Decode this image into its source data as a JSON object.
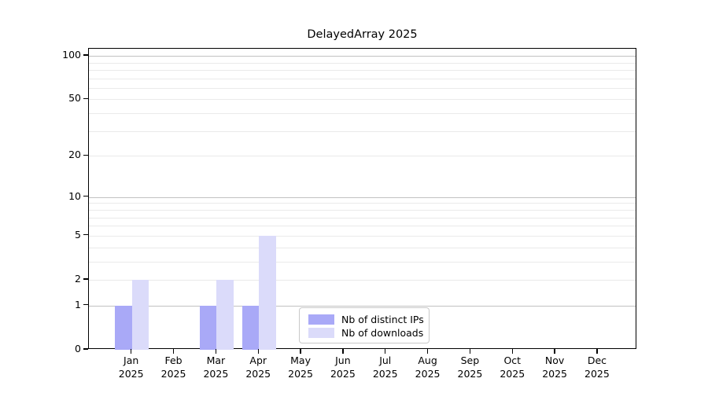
{
  "chart_data": {
    "type": "bar",
    "title": "DelayedArray 2025",
    "categories": [
      "Jan",
      "Feb",
      "Mar",
      "Apr",
      "May",
      "Jun",
      "Jul",
      "Aug",
      "Sep",
      "Oct",
      "Nov",
      "Dec"
    ],
    "category_year_line": "2025",
    "series": [
      {
        "name": "Nb of distinct IPs",
        "color": "#a9a9f7",
        "values": [
          1,
          0,
          1,
          1,
          0,
          0,
          0,
          0,
          0,
          0,
          0,
          0
        ]
      },
      {
        "name": "Nb of downloads",
        "color": "#dbdbfa",
        "values": [
          2,
          0,
          2,
          5,
          0,
          0,
          0,
          0,
          0,
          0,
          0,
          0
        ]
      }
    ],
    "yscale": "log1p",
    "ylim": [
      0,
      112
    ],
    "ytick_values": [
      0,
      1,
      2,
      5,
      10,
      20,
      50,
      100
    ],
    "grid_minor_values": [
      2,
      3,
      4,
      5,
      6,
      7,
      8,
      9,
      20,
      30,
      40,
      50,
      60,
      70,
      80,
      90
    ],
    "grid_major_values": [
      1,
      10,
      100
    ],
    "grid_on": true,
    "legend_position": "lower center",
    "colors": {
      "grid_major": "#c1c1c1",
      "grid_minor": "#eaeaea",
      "axis": "#000000",
      "legend_border": "#c9c9c9",
      "background": "#ffffff"
    }
  }
}
